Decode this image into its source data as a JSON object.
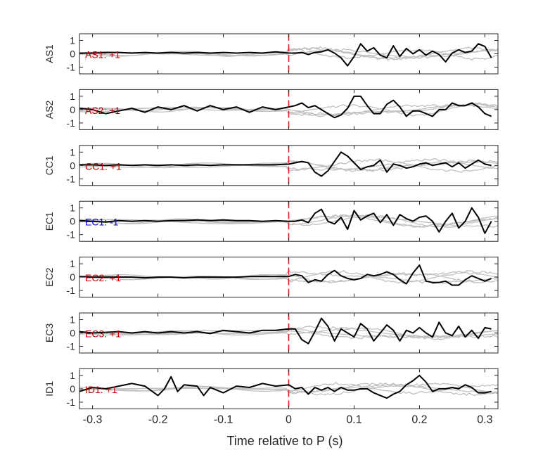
{
  "figure": {
    "xlabel": "Time relative to P (s)"
  },
  "chart_data": {
    "type": "line",
    "xlim": [
      -0.32,
      0.32
    ],
    "ylim": [
      -1.5,
      1.5
    ],
    "xticks": [
      -0.3,
      -0.2,
      -0.1,
      0,
      0.1,
      0.2,
      0.3
    ],
    "xtick_labels": [
      "-0.3",
      "-0.2",
      "-0.1",
      "0",
      "0.1",
      "0.2",
      "0.3"
    ],
    "yticks": [
      -1,
      0,
      1
    ],
    "ytick_labels": [
      "-1",
      "0",
      "1"
    ],
    "xlabel": "Time relative to P (s)",
    "marker_line": {
      "x": 0,
      "color": "#e8191c",
      "style": "dashed"
    },
    "trace_color": "#000000",
    "background_color": "#c0c0c0",
    "panels": [
      {
        "ylabel": "AS1",
        "annotation": "AS1: +1",
        "annotation_color": "#c00000",
        "series": [
          {
            "x": [
              -0.32,
              -0.3,
              -0.28,
              -0.26,
              -0.24,
              -0.22,
              -0.2,
              -0.18,
              -0.16,
              -0.14,
              -0.12,
              -0.1,
              -0.08,
              -0.06,
              -0.04,
              -0.02,
              0,
              0.01,
              0.02,
              0.03,
              0.04,
              0.05,
              0.06,
              0.07,
              0.08,
              0.09,
              0.1,
              0.11,
              0.12,
              0.13,
              0.14,
              0.15,
              0.16,
              0.17,
              0.18,
              0.19,
              0.2,
              0.21,
              0.22,
              0.23,
              0.24,
              0.25,
              0.26,
              0.27,
              0.28,
              0.29,
              0.3,
              0.31
            ],
            "y": [
              0.05,
              0.05,
              0.1,
              0.1,
              0.05,
              0.1,
              0.05,
              0.1,
              0.05,
              0.1,
              0.05,
              0.1,
              0.05,
              0.1,
              0.05,
              0.15,
              0.05,
              0.05,
              0.1,
              -0.05,
              0.1,
              0.15,
              0.3,
              0.05,
              -0.3,
              -0.9,
              -0.2,
              0.75,
              0.2,
              0.45,
              -0.1,
              -0.3,
              0.6,
              -0.2,
              0.4,
              0.0,
              0.3,
              -0.1,
              0.2,
              -0.05,
              -0.6,
              0.05,
              0.3,
              0.1,
              0.2,
              0.75,
              0.55,
              -0.3
            ]
          }
        ]
      },
      {
        "ylabel": "AS2",
        "annotation": "AS2: +1",
        "annotation_color": "#c00000",
        "series": [
          {
            "x": [
              -0.32,
              -0.3,
              -0.28,
              -0.26,
              -0.24,
              -0.22,
              -0.2,
              -0.18,
              -0.16,
              -0.14,
              -0.12,
              -0.1,
              -0.08,
              -0.06,
              -0.04,
              -0.02,
              0,
              0.01,
              0.02,
              0.03,
              0.04,
              0.05,
              0.06,
              0.07,
              0.08,
              0.09,
              0.1,
              0.11,
              0.12,
              0.13,
              0.14,
              0.15,
              0.16,
              0.17,
              0.18,
              0.19,
              0.2,
              0.21,
              0.22,
              0.23,
              0.24,
              0.25,
              0.26,
              0.27,
              0.28,
              0.29,
              0.3,
              0.31
            ],
            "y": [
              0.1,
              0.0,
              -0.3,
              -0.1,
              0.1,
              -0.2,
              0.2,
              0.0,
              0.3,
              -0.1,
              0.3,
              0.0,
              0.2,
              -0.2,
              0.2,
              0.0,
              0.2,
              0.3,
              0.5,
              0.15,
              0.3,
              0.0,
              -0.3,
              -0.6,
              -0.4,
              0.1,
              1.0,
              1.0,
              0.3,
              -0.3,
              -0.3,
              0.4,
              0.7,
              0.2,
              -0.5,
              -0.1,
              -0.1,
              -0.3,
              -0.5,
              0.0,
              0.0,
              0.5,
              0.3,
              0.3,
              0.5,
              0.2,
              -0.3,
              -0.5
            ]
          }
        ]
      },
      {
        "ylabel": "CC1",
        "annotation": "CC1: +1",
        "annotation_color": "#c00000",
        "series": [
          {
            "x": [
              -0.32,
              -0.3,
              -0.28,
              -0.26,
              -0.24,
              -0.22,
              -0.2,
              -0.18,
              -0.16,
              -0.14,
              -0.12,
              -0.1,
              -0.08,
              -0.06,
              -0.04,
              -0.02,
              0,
              0.01,
              0.02,
              0.03,
              0.04,
              0.05,
              0.06,
              0.07,
              0.08,
              0.09,
              0.1,
              0.11,
              0.12,
              0.13,
              0.14,
              0.15,
              0.16,
              0.17,
              0.18,
              0.19,
              0.2,
              0.21,
              0.22,
              0.23,
              0.24,
              0.25,
              0.26,
              0.27,
              0.28,
              0.29,
              0.3,
              0.31
            ],
            "y": [
              0.05,
              0.05,
              0.0,
              0.05,
              0.0,
              0.05,
              0.0,
              0.05,
              0.0,
              0.05,
              0.0,
              0.05,
              0.05,
              0.05,
              0.05,
              0.05,
              0.1,
              0.2,
              0.3,
              0.2,
              -0.5,
              -0.8,
              -0.4,
              0.3,
              1.0,
              0.7,
              0.2,
              -0.3,
              -0.1,
              0.0,
              0.4,
              -0.5,
              0.1,
              0.0,
              -0.2,
              -0.1,
              0.1,
              0.2,
              0.0,
              0.1,
              0.2,
              -0.1,
              0.2,
              -0.2,
              0.1,
              0.4,
              0.1,
              0.0
            ]
          }
        ]
      },
      {
        "ylabel": "EC1",
        "annotation": "EC1: -1",
        "annotation_color": "#0000c0",
        "series": [
          {
            "x": [
              -0.32,
              -0.3,
              -0.28,
              -0.26,
              -0.24,
              -0.22,
              -0.2,
              -0.18,
              -0.16,
              -0.14,
              -0.12,
              -0.1,
              -0.08,
              -0.06,
              -0.04,
              -0.02,
              0,
              0.01,
              0.02,
              0.03,
              0.04,
              0.05,
              0.06,
              0.07,
              0.08,
              0.09,
              0.1,
              0.11,
              0.12,
              0.13,
              0.14,
              0.15,
              0.16,
              0.17,
              0.18,
              0.19,
              0.2,
              0.21,
              0.22,
              0.23,
              0.24,
              0.25,
              0.26,
              0.27,
              0.28,
              0.29,
              0.3,
              0.31
            ],
            "y": [
              0.05,
              0.0,
              -0.05,
              0.05,
              0.0,
              0.05,
              0.0,
              0.05,
              0.05,
              0.1,
              0.05,
              0.1,
              0.05,
              0.05,
              0.0,
              0.05,
              0.0,
              0.0,
              0.1,
              -0.1,
              0.6,
              0.9,
              0.0,
              -0.2,
              0.3,
              -0.6,
              0.8,
              0.1,
              0.4,
              0.6,
              -0.1,
              0.5,
              -0.3,
              0.5,
              0.2,
              0.0,
              0.3,
              0.4,
              0.0,
              -0.8,
              0.0,
              0.6,
              -0.5,
              0.0,
              1.0,
              0.3,
              -0.9,
              0.0
            ]
          }
        ]
      },
      {
        "ylabel": "EC2",
        "annotation": "EC2: +1",
        "annotation_color": "#c00000",
        "series": [
          {
            "x": [
              -0.32,
              -0.3,
              -0.28,
              -0.26,
              -0.24,
              -0.22,
              -0.2,
              -0.18,
              -0.16,
              -0.14,
              -0.12,
              -0.1,
              -0.08,
              -0.06,
              -0.04,
              -0.02,
              0,
              0.01,
              0.02,
              0.03,
              0.04,
              0.05,
              0.06,
              0.07,
              0.08,
              0.09,
              0.1,
              0.11,
              0.12,
              0.13,
              0.14,
              0.15,
              0.16,
              0.17,
              0.18,
              0.19,
              0.2,
              0.21,
              0.22,
              0.23,
              0.24,
              0.25,
              0.26,
              0.27,
              0.28,
              0.29,
              0.3,
              0.31
            ],
            "y": [
              0.05,
              0.0,
              0.0,
              0.0,
              0.0,
              -0.05,
              0.0,
              0.0,
              -0.05,
              0.0,
              0.0,
              0.0,
              0.0,
              0.05,
              0.05,
              0.05,
              0.05,
              0.2,
              0.1,
              -0.4,
              -0.2,
              -0.3,
              0.2,
              0.5,
              0.1,
              -0.1,
              -0.2,
              -0.1,
              0.2,
              0.1,
              0.2,
              0.4,
              0.2,
              -0.2,
              -0.5,
              0.3,
              0.9,
              -0.3,
              -0.4,
              -0.4,
              -0.3,
              -0.6,
              -0.6,
              -0.2,
              0.1,
              -0.1,
              -0.3,
              -0.1
            ]
          }
        ]
      },
      {
        "ylabel": "EC3",
        "annotation": "EC3: +1",
        "annotation_color": "#c00000",
        "series": [
          {
            "x": [
              -0.32,
              -0.3,
              -0.28,
              -0.26,
              -0.24,
              -0.22,
              -0.2,
              -0.18,
              -0.16,
              -0.14,
              -0.12,
              -0.1,
              -0.08,
              -0.06,
              -0.04,
              -0.02,
              0,
              0.01,
              0.02,
              0.03,
              0.04,
              0.05,
              0.06,
              0.07,
              0.08,
              0.09,
              0.1,
              0.11,
              0.12,
              0.13,
              0.14,
              0.15,
              0.16,
              0.17,
              0.18,
              0.19,
              0.2,
              0.21,
              0.22,
              0.23,
              0.24,
              0.25,
              0.26,
              0.27,
              0.28,
              0.29,
              0.3,
              0.31
            ],
            "y": [
              0.1,
              0.0,
              0.05,
              0.1,
              0.0,
              0.1,
              0.0,
              0.1,
              0.0,
              0.1,
              -0.05,
              0.2,
              0.1,
              0.0,
              0.2,
              0.2,
              0.3,
              0.3,
              -0.5,
              -0.8,
              0.1,
              1.1,
              0.5,
              -0.6,
              0.3,
              0.0,
              -0.3,
              0.7,
              0.3,
              -0.6,
              0.0,
              0.6,
              0.2,
              -0.6,
              0.2,
              0.0,
              0.4,
              0.0,
              -0.3,
              0.8,
              0.0,
              -0.2,
              0.5,
              -0.3,
              0.2,
              -0.4,
              0.4,
              0.3
            ]
          }
        ]
      },
      {
        "ylabel": "ID1",
        "annotation": "ID1: +1",
        "annotation_color": "#c00000",
        "series": [
          {
            "x": [
              -0.32,
              -0.3,
              -0.28,
              -0.26,
              -0.24,
              -0.22,
              -0.2,
              -0.19,
              -0.18,
              -0.17,
              -0.16,
              -0.14,
              -0.13,
              -0.12,
              -0.1,
              -0.08,
              -0.06,
              -0.04,
              -0.02,
              0,
              0.01,
              0.02,
              0.03,
              0.04,
              0.05,
              0.06,
              0.07,
              0.08,
              0.09,
              0.1,
              0.11,
              0.12,
              0.13,
              0.14,
              0.15,
              0.16,
              0.17,
              0.18,
              0.19,
              0.2,
              0.21,
              0.22,
              0.23,
              0.24,
              0.25,
              0.26,
              0.27,
              0.28,
              0.29,
              0.3,
              0.31
            ],
            "y": [
              -0.2,
              0.1,
              0.0,
              0.2,
              0.4,
              0.2,
              -0.5,
              0.0,
              0.9,
              -0.2,
              0.3,
              0.2,
              -0.5,
              0.1,
              -0.3,
              0.2,
              0.1,
              0.4,
              0.2,
              0.3,
              0.0,
              0.1,
              -0.4,
              0.1,
              -0.1,
              0.1,
              -0.2,
              0.1,
              -0.1,
              -0.1,
              0.0,
              0.0,
              -0.3,
              -0.5,
              -0.7,
              -0.4,
              -0.2,
              0.3,
              0.6,
              1.0,
              0.5,
              -0.2,
              0.0,
              0.0,
              0.1,
              0.0,
              0.3,
              0.1,
              -0.3,
              -0.3,
              -0.2
            ]
          }
        ]
      }
    ]
  }
}
